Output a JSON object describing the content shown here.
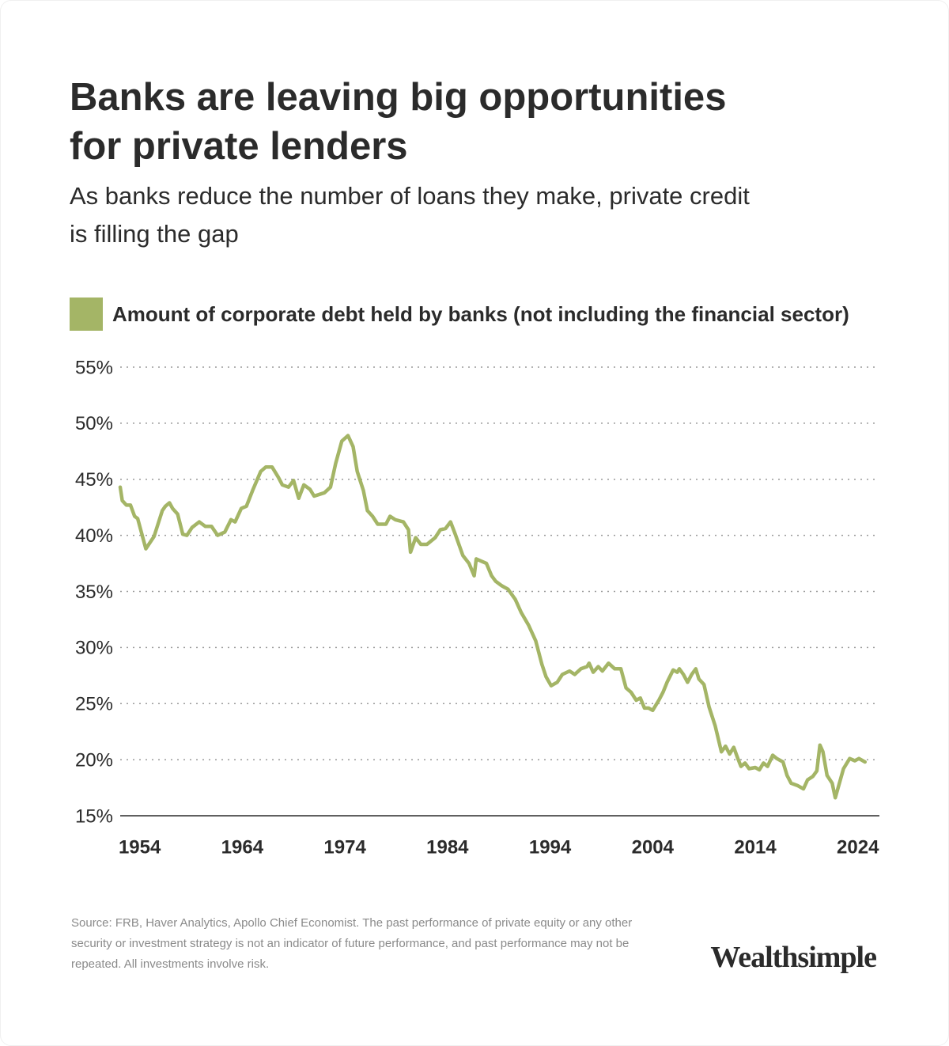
{
  "chart_data": {
    "type": "line",
    "title": "Banks are leaving big opportunities for private lenders",
    "subtitle": "As banks reduce the number of loans they make, private credit is filling the gap",
    "source": "Source: FRB, Haver Analytics, Apollo Chief Economist. The past performance of private equity or any other security or investment strategy is not an indicator of future performance, and past performance may not be repeated. All investments involve risk.",
    "brand": "Wealthsimple",
    "x": [
      1952.1,
      1952.3,
      1952.7,
      1953.1,
      1953.5,
      1953.8,
      1954.6,
      1955.4,
      1956.2,
      1956.5,
      1956.9,
      1957.2,
      1957.7,
      1958.2,
      1958.6,
      1959.1,
      1959.8,
      1960.4,
      1961.0,
      1961.6,
      1962.3,
      1962.9,
      1963.3,
      1963.9,
      1964.4,
      1965.0,
      1965.8,
      1966.3,
      1966.9,
      1967.5,
      1967.9,
      1968.5,
      1969.0,
      1969.5,
      1970.0,
      1970.6,
      1971.0,
      1972.0,
      1972.6,
      1973.1,
      1973.7,
      1974.3,
      1974.8,
      1975.2,
      1975.8,
      1976.2,
      1976.7,
      1977.2,
      1978.0,
      1978.4,
      1978.9,
      1979.7,
      1980.2,
      1980.4,
      1980.9,
      1981.4,
      1982.0,
      1982.8,
      1983.3,
      1983.8,
      1984.3,
      1984.8,
      1985.5,
      1986.1,
      1986.6,
      1986.8,
      1987.8,
      1988.3,
      1988.7,
      1989.3,
      1989.9,
      1990.6,
      1991.2,
      1991.9,
      1992.6,
      1993.2,
      1993.6,
      1994.1,
      1994.7,
      1995.2,
      1995.9,
      1996.4,
      1997.0,
      1997.6,
      1997.8,
      1998.2,
      1998.7,
      1999.1,
      1999.7,
      2000.3,
      2000.9,
      2001.4,
      2001.9,
      2002.4,
      2002.8,
      2003.2,
      2003.6,
      2004.0,
      2004.6,
      2005.0,
      2005.4,
      2006.0,
      2006.4,
      2006.6,
      2007.0,
      2007.4,
      2007.8,
      2008.2,
      2008.5,
      2009.0,
      2009.5,
      2010.1,
      2010.7,
      2011.1,
      2011.5,
      2011.9,
      2012.3,
      2012.6,
      2013.0,
      2013.4,
      2014.0,
      2014.4,
      2014.8,
      2015.2,
      2015.7,
      2016.1,
      2016.7,
      2017.1,
      2017.5,
      2018.1,
      2018.7,
      2019.1,
      2019.6,
      2020.0,
      2020.3,
      2020.6,
      2021.0,
      2021.5,
      2021.8,
      2022.2,
      2022.6,
      2023.2,
      2023.7,
      2024.1,
      2024.7
    ],
    "series": [
      {
        "name": "Amount of corporate debt held by banks (not including the financial sector)",
        "color": "#a4b566",
        "values": [
          44.3,
          43.1,
          42.7,
          42.7,
          41.7,
          41.5,
          38.8,
          39.9,
          42.2,
          42.6,
          42.9,
          42.4,
          41.9,
          40.1,
          40.0,
          40.7,
          41.2,
          40.8,
          40.8,
          40.0,
          40.3,
          41.4,
          41.2,
          42.4,
          42.6,
          44.0,
          45.7,
          46.1,
          46.1,
          45.2,
          44.5,
          44.3,
          44.9,
          43.3,
          44.5,
          44.1,
          43.5,
          43.8,
          44.3,
          46.4,
          48.4,
          48.9,
          47.9,
          45.7,
          44.0,
          42.2,
          41.7,
          41.0,
          41.0,
          41.7,
          41.4,
          41.2,
          40.5,
          38.5,
          39.8,
          39.2,
          39.2,
          39.8,
          40.5,
          40.6,
          41.2,
          40.0,
          38.2,
          37.5,
          36.4,
          37.9,
          37.5,
          36.4,
          35.9,
          35.5,
          35.2,
          34.3,
          33.1,
          32.0,
          30.6,
          28.5,
          27.4,
          26.6,
          26.9,
          27.6,
          27.9,
          27.6,
          28.1,
          28.3,
          28.6,
          27.8,
          28.3,
          27.9,
          28.6,
          28.1,
          28.1,
          26.4,
          26.0,
          25.3,
          25.5,
          24.6,
          24.6,
          24.4,
          25.3,
          26.0,
          26.9,
          28.0,
          27.8,
          28.1,
          27.6,
          26.9,
          27.6,
          28.1,
          27.2,
          26.7,
          24.7,
          23.0,
          20.7,
          21.2,
          20.5,
          21.1,
          20.1,
          19.4,
          19.7,
          19.2,
          19.3,
          19.1,
          19.7,
          19.4,
          20.4,
          20.1,
          19.8,
          18.6,
          17.9,
          17.7,
          17.4,
          18.2,
          18.5,
          19.0,
          21.3,
          20.7,
          18.6,
          17.9,
          16.6,
          17.9,
          19.2,
          20.1,
          19.9,
          20.1,
          19.8
        ]
      }
    ],
    "xlim": [
      1952.1,
      2026.1
    ],
    "xticks": [
      1954,
      1964,
      1974,
      1984,
      1994,
      2004,
      2014,
      2024
    ],
    "ylim": [
      15,
      55
    ],
    "yticks": [
      {
        "value": 15,
        "label": "15%"
      },
      {
        "value": 20,
        "label": "20%"
      },
      {
        "value": 25,
        "label": "25%"
      },
      {
        "value": 30,
        "label": "30%"
      },
      {
        "value": 35,
        "label": "35%"
      },
      {
        "value": 40,
        "label": "40%"
      },
      {
        "value": 45,
        "label": "45%"
      },
      {
        "value": 50,
        "label": "50%"
      },
      {
        "value": 55,
        "label": "55%"
      }
    ],
    "grid": true
  }
}
